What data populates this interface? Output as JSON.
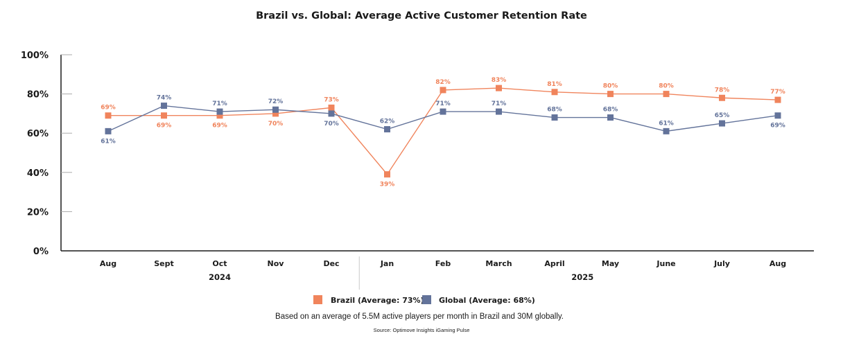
{
  "chart_data": {
    "type": "line",
    "title": "Brazil vs. Global: Average Active Customer Retention Rate",
    "xlabel": "",
    "ylabel": "",
    "categories": [
      "Aug",
      "Sept",
      "Oct",
      "Nov",
      "Dec",
      "Jan",
      "Feb",
      "March",
      "April",
      "May",
      "June",
      "July",
      "Aug"
    ],
    "year_groups": [
      {
        "label": "2024",
        "start_index": 0,
        "end_index": 4
      },
      {
        "label": "2025",
        "start_index": 5,
        "end_index": 12
      }
    ],
    "ylim": [
      0,
      100
    ],
    "yticks": [
      0,
      20,
      40,
      60,
      80,
      100
    ],
    "ytick_labels": [
      "0%",
      "20%",
      "40%",
      "60%",
      "80%",
      "100%"
    ],
    "grid": false,
    "legend_position": "bottom-center",
    "series": [
      {
        "name": "Brazil",
        "legend_label": "Brazil (Average: 73%)",
        "color": "#f0845c",
        "values": [
          69,
          69,
          69,
          70,
          73,
          39,
          82,
          83,
          81,
          80,
          80,
          78,
          77
        ],
        "labels": [
          "69%",
          "69%",
          "69%",
          "70%",
          "73%",
          "39%",
          "82%",
          "83%",
          "81%",
          "80%",
          "80%",
          "78%",
          "77%"
        ],
        "label_side": [
          "above",
          "below",
          "below",
          "below",
          "above",
          "below",
          "above",
          "above",
          "above",
          "above",
          "above",
          "above",
          "above"
        ]
      },
      {
        "name": "Global",
        "legend_label": "Global (Average: 68%)",
        "color": "#63739a",
        "values": [
          61,
          74,
          71,
          72,
          70,
          62,
          71,
          71,
          68,
          68,
          61,
          65,
          69
        ],
        "labels": [
          "61%",
          "74%",
          "71%",
          "72%",
          "70%",
          "62%",
          "71%",
          "71%",
          "68%",
          "68%",
          "61%",
          "65%",
          "69%"
        ],
        "label_side": [
          "below",
          "above",
          "above",
          "above",
          "below",
          "above",
          "above",
          "above",
          "above",
          "above",
          "above",
          "above",
          "below"
        ]
      }
    ],
    "annotations": {
      "note": "Based on an average of 5.5M active players per month in Brazil and 30M globally.",
      "source": "Source: Optimove Insights iGaming Pulse"
    }
  }
}
